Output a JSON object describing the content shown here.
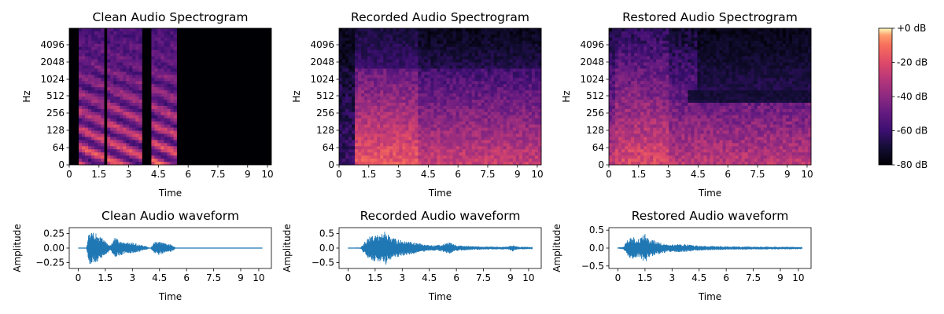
{
  "chart_data": [
    {
      "type": "heatmap",
      "title": "Clean Audio Spectrogram",
      "xlabel": "Time",
      "ylabel": "Hz",
      "xlim": [
        0,
        10.2
      ],
      "x_ticks": [
        "0",
        "1.5",
        "3",
        "4.5",
        "6",
        "7.5",
        "9",
        "10"
      ],
      "y_scale": "log-frequency",
      "y_ticks": [
        "0",
        "64",
        "128",
        "256",
        "512",
        "1024",
        "2048",
        "4096"
      ],
      "active_segments": [
        [
          0.5,
          1.8
        ],
        [
          1.9,
          3.7
        ],
        [
          4.2,
          5.4
        ]
      ],
      "silence_after": 5.4,
      "color_scale": "magma",
      "value_range_db": [
        -80,
        0
      ]
    },
    {
      "type": "heatmap",
      "title": "Recorded Audio Spectrogram",
      "xlabel": "Time",
      "ylabel": "Hz",
      "xlim": [
        0,
        10.2
      ],
      "x_ticks": [
        "0",
        "1.5",
        "3",
        "4.5",
        "6",
        "7.5",
        "9",
        "10"
      ],
      "y_scale": "log-frequency",
      "y_ticks": [
        "0",
        "64",
        "128",
        "256",
        "512",
        "1024",
        "2048",
        "4096"
      ],
      "active_segments": [
        [
          0.8,
          10.2
        ]
      ],
      "color_scale": "magma",
      "value_range_db": [
        -80,
        0
      ]
    },
    {
      "type": "heatmap",
      "title": "Restored Audio Spectrogram",
      "xlabel": "Time",
      "ylabel": "Hz",
      "xlim": [
        0,
        10.2
      ],
      "x_ticks": [
        "0",
        "1.5",
        "3",
        "4.5",
        "6",
        "7.5",
        "9",
        "10"
      ],
      "y_scale": "log-frequency",
      "y_ticks": [
        "0",
        "64",
        "128",
        "256",
        "512",
        "1024",
        "2048",
        "4096"
      ],
      "active_segments": [
        [
          0.3,
          10.2
        ]
      ],
      "color_scale": "magma",
      "value_range_db": [
        -80,
        0
      ]
    },
    {
      "type": "colorbar",
      "color_scale": "magma",
      "range": [
        -80,
        0
      ],
      "tick_values": [
        0,
        -20,
        -40,
        -60,
        -80
      ],
      "tick_labels": [
        "+0 dB",
        "-20 dB",
        "-40 dB",
        "-60 dB",
        "-80 dB"
      ]
    },
    {
      "type": "line",
      "title": "Clean Audio waveform",
      "xlabel": "Time",
      "ylabel": "Amplitude",
      "xlim": [
        -0.5,
        10.7
      ],
      "ylim": [
        -0.35,
        0.35
      ],
      "x_ticks": [
        "0",
        "1.5",
        "3",
        "4.5",
        "6",
        "7.5",
        "9",
        "10"
      ],
      "y_tick_values": [
        0.25,
        0.0,
        -0.25
      ],
      "y_tick_labels": [
        "0.25",
        "0.00",
        "−0.25"
      ],
      "signal_range": [
        0,
        10.2
      ],
      "envelope": [
        [
          0.0,
          0.0
        ],
        [
          0.45,
          0.0
        ],
        [
          0.5,
          0.1
        ],
        [
          0.6,
          0.3
        ],
        [
          0.8,
          0.28
        ],
        [
          1.0,
          0.25
        ],
        [
          1.2,
          0.2
        ],
        [
          1.5,
          0.12
        ],
        [
          1.8,
          0.05
        ],
        [
          1.9,
          0.1
        ],
        [
          2.0,
          0.18
        ],
        [
          2.3,
          0.14
        ],
        [
          2.6,
          0.09
        ],
        [
          3.0,
          0.1
        ],
        [
          3.3,
          0.07
        ],
        [
          3.7,
          0.04
        ],
        [
          4.0,
          0.0
        ],
        [
          4.2,
          0.1
        ],
        [
          4.5,
          0.12
        ],
        [
          4.8,
          0.08
        ],
        [
          5.1,
          0.07
        ],
        [
          5.3,
          0.04
        ],
        [
          5.4,
          0.0
        ],
        [
          10.2,
          0.0
        ]
      ],
      "line_color": "#1f77b4"
    },
    {
      "type": "line",
      "title": "Recorded Audio waveform",
      "xlabel": "Time",
      "ylabel": "Amplitude",
      "xlim": [
        -0.5,
        10.7
      ],
      "ylim": [
        -0.7,
        0.7
      ],
      "x_ticks": [
        "0",
        "1.5",
        "3",
        "4.5",
        "6",
        "7.5",
        "9",
        "10"
      ],
      "y_tick_values": [
        0.5,
        0.0,
        -0.5
      ],
      "y_tick_labels": [
        "0.5",
        "0.0",
        "−0.5"
      ],
      "signal_range": [
        0,
        10.2
      ],
      "envelope": [
        [
          0.0,
          0.01
        ],
        [
          0.7,
          0.02
        ],
        [
          0.9,
          0.2
        ],
        [
          1.2,
          0.4
        ],
        [
          1.5,
          0.45
        ],
        [
          1.9,
          0.5
        ],
        [
          2.1,
          0.6
        ],
        [
          2.4,
          0.35
        ],
        [
          2.8,
          0.3
        ],
        [
          3.2,
          0.25
        ],
        [
          3.6,
          0.2
        ],
        [
          4.0,
          0.15
        ],
        [
          4.6,
          0.1
        ],
        [
          5.2,
          0.12
        ],
        [
          5.6,
          0.2
        ],
        [
          6.0,
          0.1
        ],
        [
          7.0,
          0.06
        ],
        [
          8.0,
          0.05
        ],
        [
          8.9,
          0.05
        ],
        [
          9.1,
          0.12
        ],
        [
          9.4,
          0.05
        ],
        [
          10.2,
          0.04
        ]
      ],
      "line_color": "#1f77b4"
    },
    {
      "type": "line",
      "title": "Restored Audio waveform",
      "xlabel": "Time",
      "ylabel": "Amplitude",
      "xlim": [
        -0.5,
        10.7
      ],
      "ylim": [
        -0.57,
        0.57
      ],
      "x_ticks": [
        "0",
        "1.5",
        "3",
        "4.5",
        "6",
        "7.5",
        "9",
        "10"
      ],
      "y_tick_values": [
        0.5,
        0.0,
        -0.5
      ],
      "y_tick_labels": [
        "0.5",
        "0.0",
        "−0.5"
      ],
      "signal_range": [
        0,
        10.2
      ],
      "envelope": [
        [
          0.0,
          0.02
        ],
        [
          0.3,
          0.03
        ],
        [
          0.5,
          0.2
        ],
        [
          0.7,
          0.33
        ],
        [
          0.9,
          0.3
        ],
        [
          1.2,
          0.25
        ],
        [
          1.5,
          0.45
        ],
        [
          1.7,
          0.25
        ],
        [
          2.0,
          0.22
        ],
        [
          2.4,
          0.15
        ],
        [
          3.0,
          0.1
        ],
        [
          3.6,
          0.12
        ],
        [
          4.2,
          0.08
        ],
        [
          5.0,
          0.06
        ],
        [
          6.0,
          0.05
        ],
        [
          7.5,
          0.04
        ],
        [
          9.0,
          0.04
        ],
        [
          10.2,
          0.03
        ]
      ],
      "line_color": "#1f77b4"
    }
  ]
}
